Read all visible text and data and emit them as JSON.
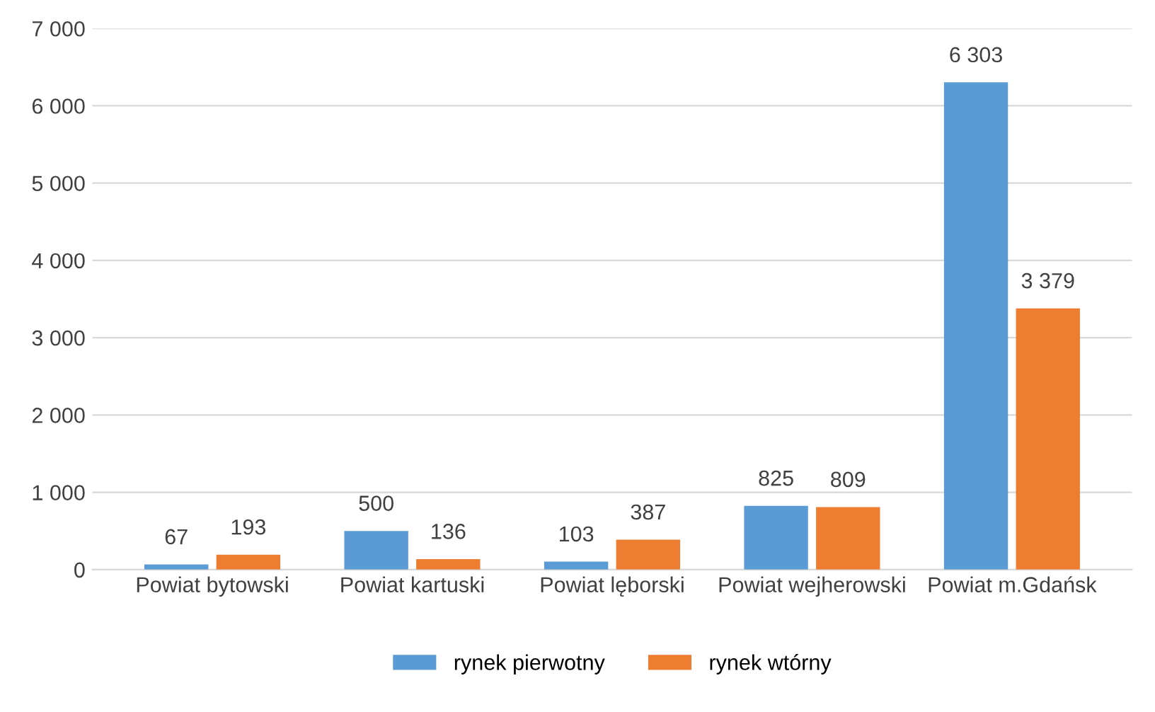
{
  "chart_data": {
    "type": "bar",
    "categories": [
      "Powiat bytowski",
      "Powiat kartuski",
      "Powiat lęborski",
      "Powiat wejherowski",
      "Powiat m.Gdańsk"
    ],
    "series": [
      {
        "name": "rynek pierwotny",
        "color": "#5b9bd5",
        "values": [
          67,
          500,
          103,
          825,
          6303
        ],
        "value_labels": [
          "67",
          "500",
          "103",
          "825",
          "6 303"
        ]
      },
      {
        "name": "rynek wtórny",
        "color": "#ed7d31",
        "values": [
          193,
          136,
          387,
          809,
          3379
        ],
        "value_labels": [
          "193",
          "136",
          "387",
          "809",
          "3 379"
        ]
      }
    ],
    "ylim": [
      0,
      7000
    ],
    "yticks": [
      0,
      {
        "value": 1000,
        "label": "1 000"
      },
      {
        "value": 2000,
        "label": "2 000"
      },
      {
        "value": 3000,
        "label": "3 000"
      },
      {
        "value": 4000,
        "label": "4 000"
      },
      {
        "value": 5000,
        "label": "5 000"
      },
      {
        "value": 6000,
        "label": "6 000"
      },
      {
        "value": 7000,
        "label": "7 000"
      }
    ],
    "grid": "y",
    "legend": "bottom"
  }
}
